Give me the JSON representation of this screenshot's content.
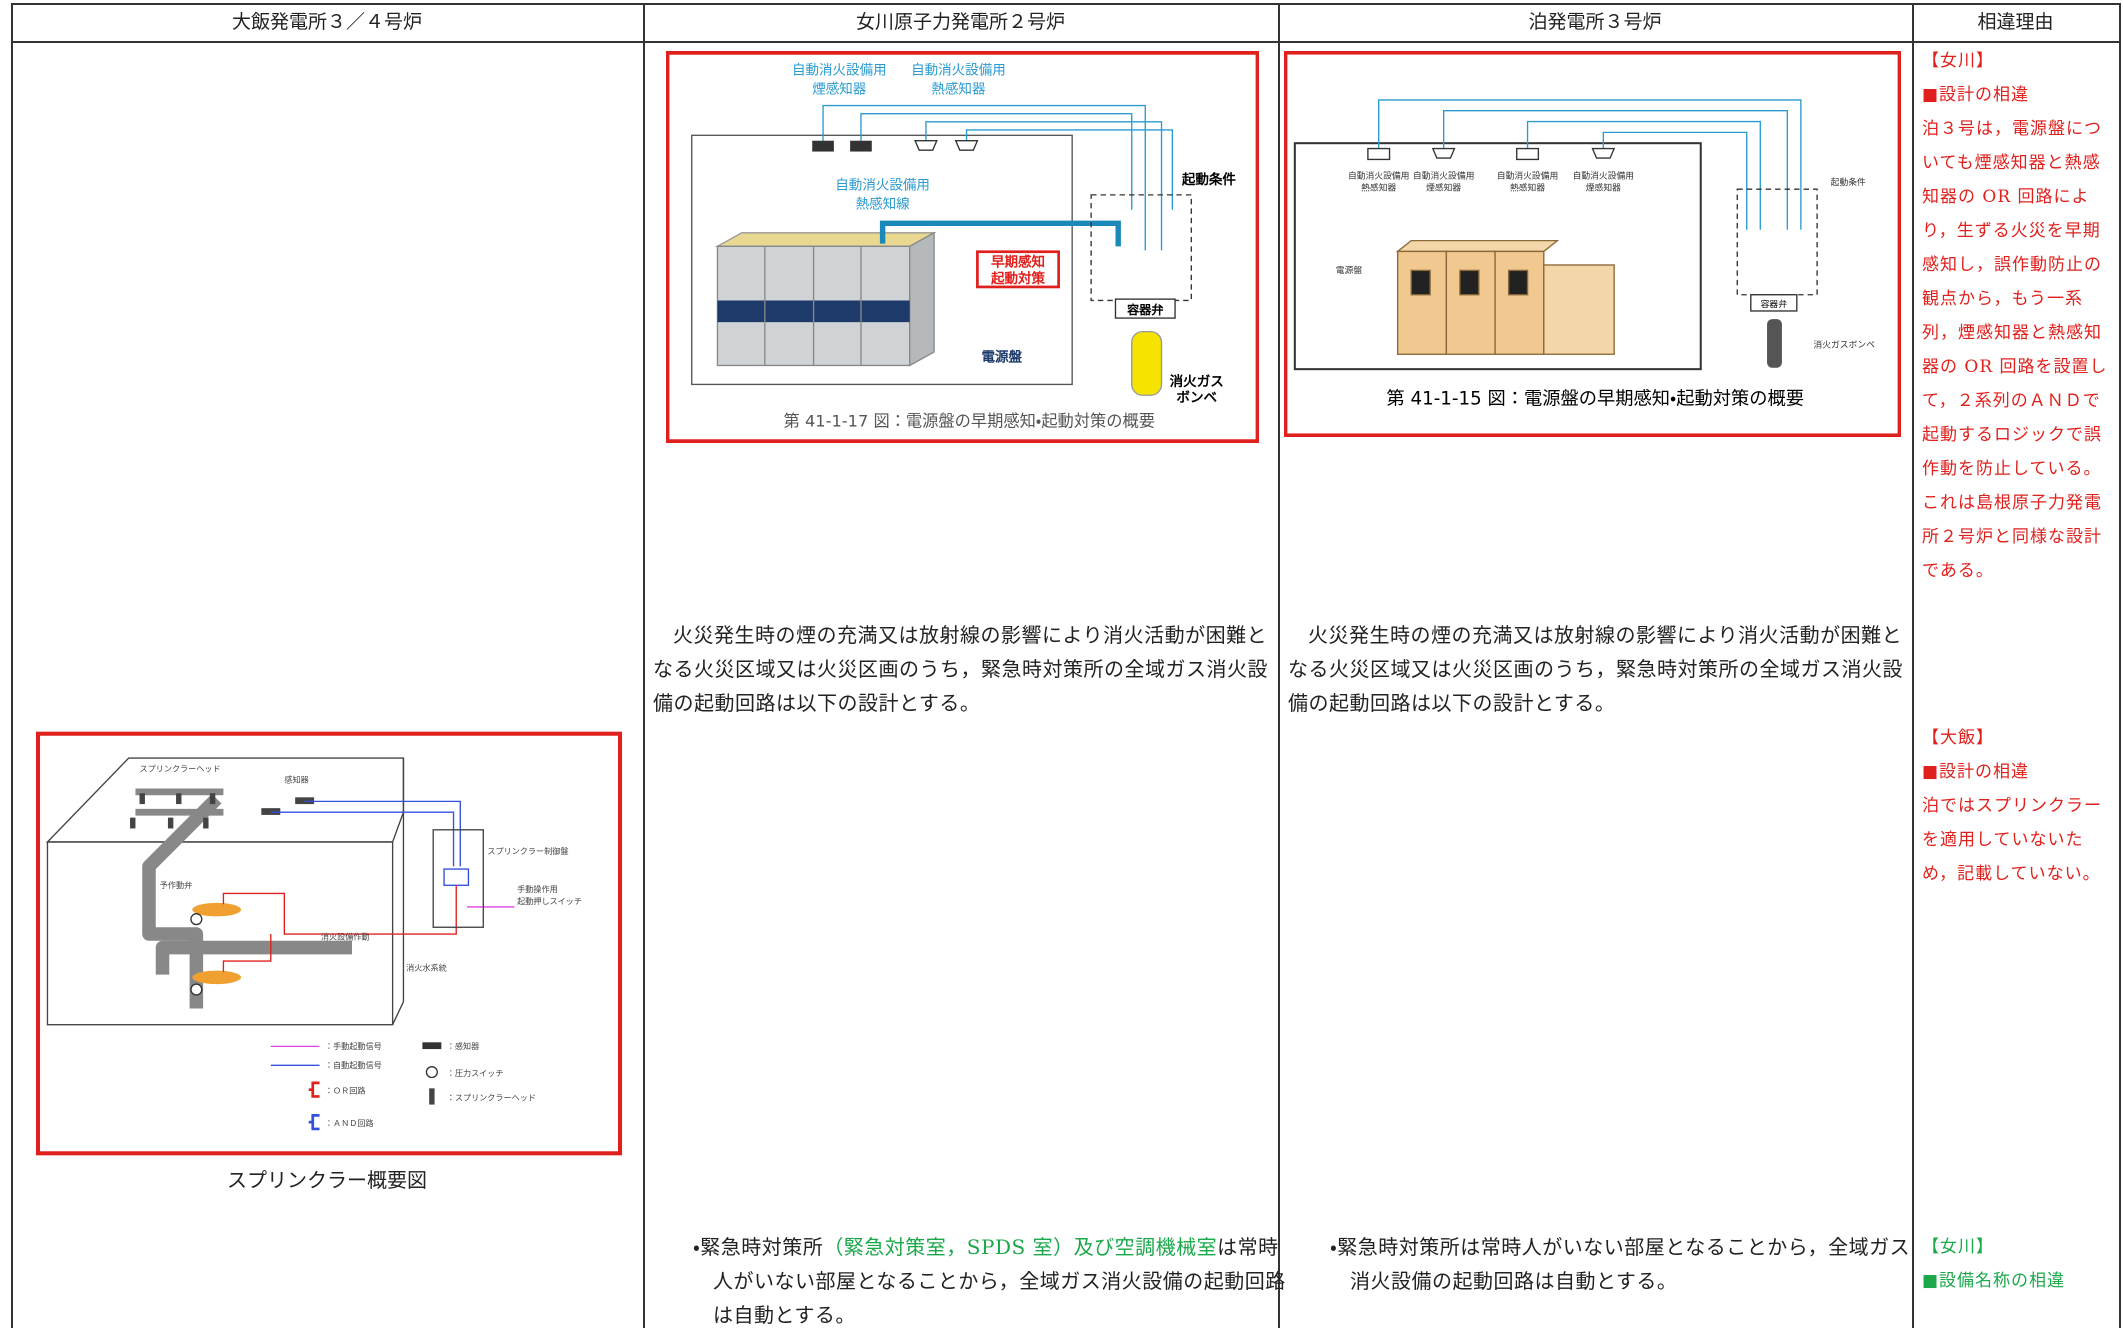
{
  "header": {
    "columns": [
      "大飯発電所３／４号炉",
      "女川原子力発電所２号炉",
      "泊発電所３号炉",
      "相違理由"
    ]
  },
  "onagawa_figure": {
    "labels": [
      "自動消火設備用",
      "煙感知器",
      "自動消火設備用",
      "熱感知器",
      "自動消火設備用",
      "熱感知線",
      "起動条件",
      "早期感知",
      "起動対策",
      "電源盤",
      "容器弁",
      "消火ガス",
      "ボンベ"
    ],
    "caption": "第 41-1-17 図：電源盤の早期感知・起動対策の概要"
  },
  "tomari_figure": {
    "labels": [
      "自動消火設備用",
      "熱感知器",
      "自動消火設備用",
      "煙感知器",
      "自動消火設備用",
      "熱感知器",
      "自動消火設備用",
      "煙感知器",
      "起動条件",
      "電源盤",
      "容器弁",
      "消火ガスボンベ"
    ],
    "caption": "第 41-1-15 図：電源盤の早期感知・起動対策の概要"
  },
  "ohi_figure": {
    "labels": [
      "スプリンクラーヘッド",
      "感知器",
      "スプリンクラー制御盤",
      "予作動弁",
      "手動操作用",
      "起動押しスイッチ",
      "消火設備作動",
      "消火水系統"
    ],
    "legend": [
      "：手動起動信号",
      "：自動起動信号",
      "：ＯＲ回路",
      "：ＡＮＤ回路",
      "：感知器",
      "：圧力スイッチ",
      "：スプリンクラーヘッド"
    ],
    "caption": "スプリンクラー概要図"
  },
  "onagawa_text": {
    "paragraph": "火災発生時の煙の充満又は放射線の影響により消火活動が困難となる火災区域又は火災区画のうち，緊急時対策所の全域ガス消火設備の起動回路は以下の設計とする。",
    "bullet": {
      "before": "・緊急時対策所",
      "highlight": "（緊急対策室，SPDS 室）及び空調機械室",
      "after": "は常時人がいない部屋となることから，全域ガス消火設備の起動回路は自動とする。"
    }
  },
  "tomari_text": {
    "paragraph": "火災発生時の煙の充満又は放射線の影響により消火活動が困難となる火災区域又は火災区画のうち，緊急時対策所の全域ガス消火設備の起動回路は以下の設計とする。",
    "bullet": "・緊急時対策所は常時人がいない部屋となることから，全域ガス消火設備の起動回路は自動とする。"
  },
  "reasons": [
    {
      "tag": "【女川】",
      "heading": "■設計の相違",
      "body": "泊３号は，電源盤についても煙感知器と熱感知器の OR 回路により，生ずる火災を早期感知し，誤作動防止の観点から，もう一系列，煙感知器と熱感知器の OR 回路を設置して，２系列のＡＮＤで起動するロジックで誤作動を防止している。これは島根原子力発電所２号炉と同様な設計である。"
    },
    {
      "tag": "【大飯】",
      "heading": "■設計の相違",
      "body": "泊ではスプリンクラーを適用していないため，記載していない。"
    },
    {
      "tag": "【女川】",
      "heading": "■設備名称の相違"
    }
  ]
}
